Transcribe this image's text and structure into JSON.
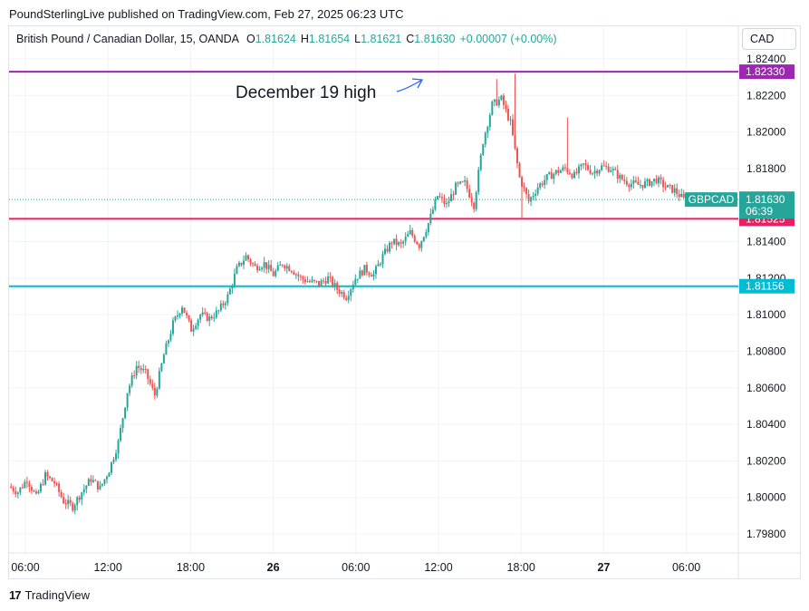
{
  "header": {
    "publisher": "PoundSterlingLive published on TradingView.com, Feb 27, 2025 06:23 UTC"
  },
  "legend": {
    "symbol": "British Pound / Canadian Dollar, 15, OANDA",
    "open_label": "O",
    "open": "1.81624",
    "high_label": "H",
    "high": "1.81654",
    "low_label": "L",
    "low": "1.81621",
    "close_label": "C",
    "close": "1.81630",
    "change": "+0.00007 (+0.00%)"
  },
  "currency": "CAD",
  "footer": {
    "brand": "TradingView",
    "logo_glyph": "17"
  },
  "colors": {
    "up": "#26a69a",
    "down": "#ef5350",
    "purple": "#9c27b0",
    "pink": "#e91e63",
    "cyan": "#00bcd4",
    "grid": "#f0f3fa"
  },
  "chart_data": {
    "type": "candlestick",
    "title": "",
    "ylim": [
      1.797,
      1.825
    ],
    "y_ticks": [
      "1.82400",
      "1.82200",
      "1.82000",
      "1.81800",
      "1.81400",
      "1.81200",
      "1.81000",
      "1.80800",
      "1.80600",
      "1.80400",
      "1.80200",
      "1.80000",
      "1.79800"
    ],
    "x_ticks": [
      {
        "label": "06:00",
        "bold": false
      },
      {
        "label": "12:00",
        "bold": false
      },
      {
        "label": "18:00",
        "bold": false
      },
      {
        "label": "26",
        "bold": true
      },
      {
        "label": "06:00",
        "bold": false
      },
      {
        "label": "12:00",
        "bold": false
      },
      {
        "label": "18:00",
        "bold": false
      },
      {
        "label": "27",
        "bold": true
      },
      {
        "label": "06:00",
        "bold": false
      }
    ],
    "horizontal_lines": [
      {
        "value": 1.8233,
        "label": "1.82330",
        "color": "#9c27b0"
      },
      {
        "value": 1.81525,
        "label": "1.81525",
        "color": "#e91e63"
      },
      {
        "value": 1.81156,
        "label": "1.81156",
        "color": "#00bcd4"
      }
    ],
    "last_price": {
      "value": 1.8163,
      "symbol": "GBPCAD",
      "label": "1.81630",
      "countdown": "06:39"
    },
    "annotation": {
      "text": "December 19 high"
    },
    "close_path": [
      1.8006,
      1.8003,
      1.801,
      1.8,
      1.8012,
      1.8008,
      1.7998,
      1.7995,
      1.8003,
      1.801,
      1.8005,
      1.8015,
      1.803,
      1.8058,
      1.8072,
      1.8068,
      1.8056,
      1.8078,
      1.8095,
      1.8105,
      1.8092,
      1.81,
      1.8098,
      1.8102,
      1.811,
      1.8125,
      1.8132,
      1.8126,
      1.8128,
      1.8122,
      1.8128,
      1.8125,
      1.812,
      1.8118,
      1.8117,
      1.812,
      1.8114,
      1.811,
      1.812,
      1.8125,
      1.8122,
      1.8132,
      1.814,
      1.8138,
      1.8145,
      1.8138,
      1.815,
      1.8165,
      1.816,
      1.817,
      1.8172,
      1.816,
      1.8195,
      1.8215,
      1.8218,
      1.8205,
      1.8175,
      1.8162,
      1.817,
      1.8175,
      1.8178,
      1.818,
      1.8176,
      1.8182,
      1.8178,
      1.8181,
      1.818,
      1.8175,
      1.8172,
      1.8171,
      1.8172,
      1.8174,
      1.817,
      1.8168,
      1.8163
    ]
  }
}
